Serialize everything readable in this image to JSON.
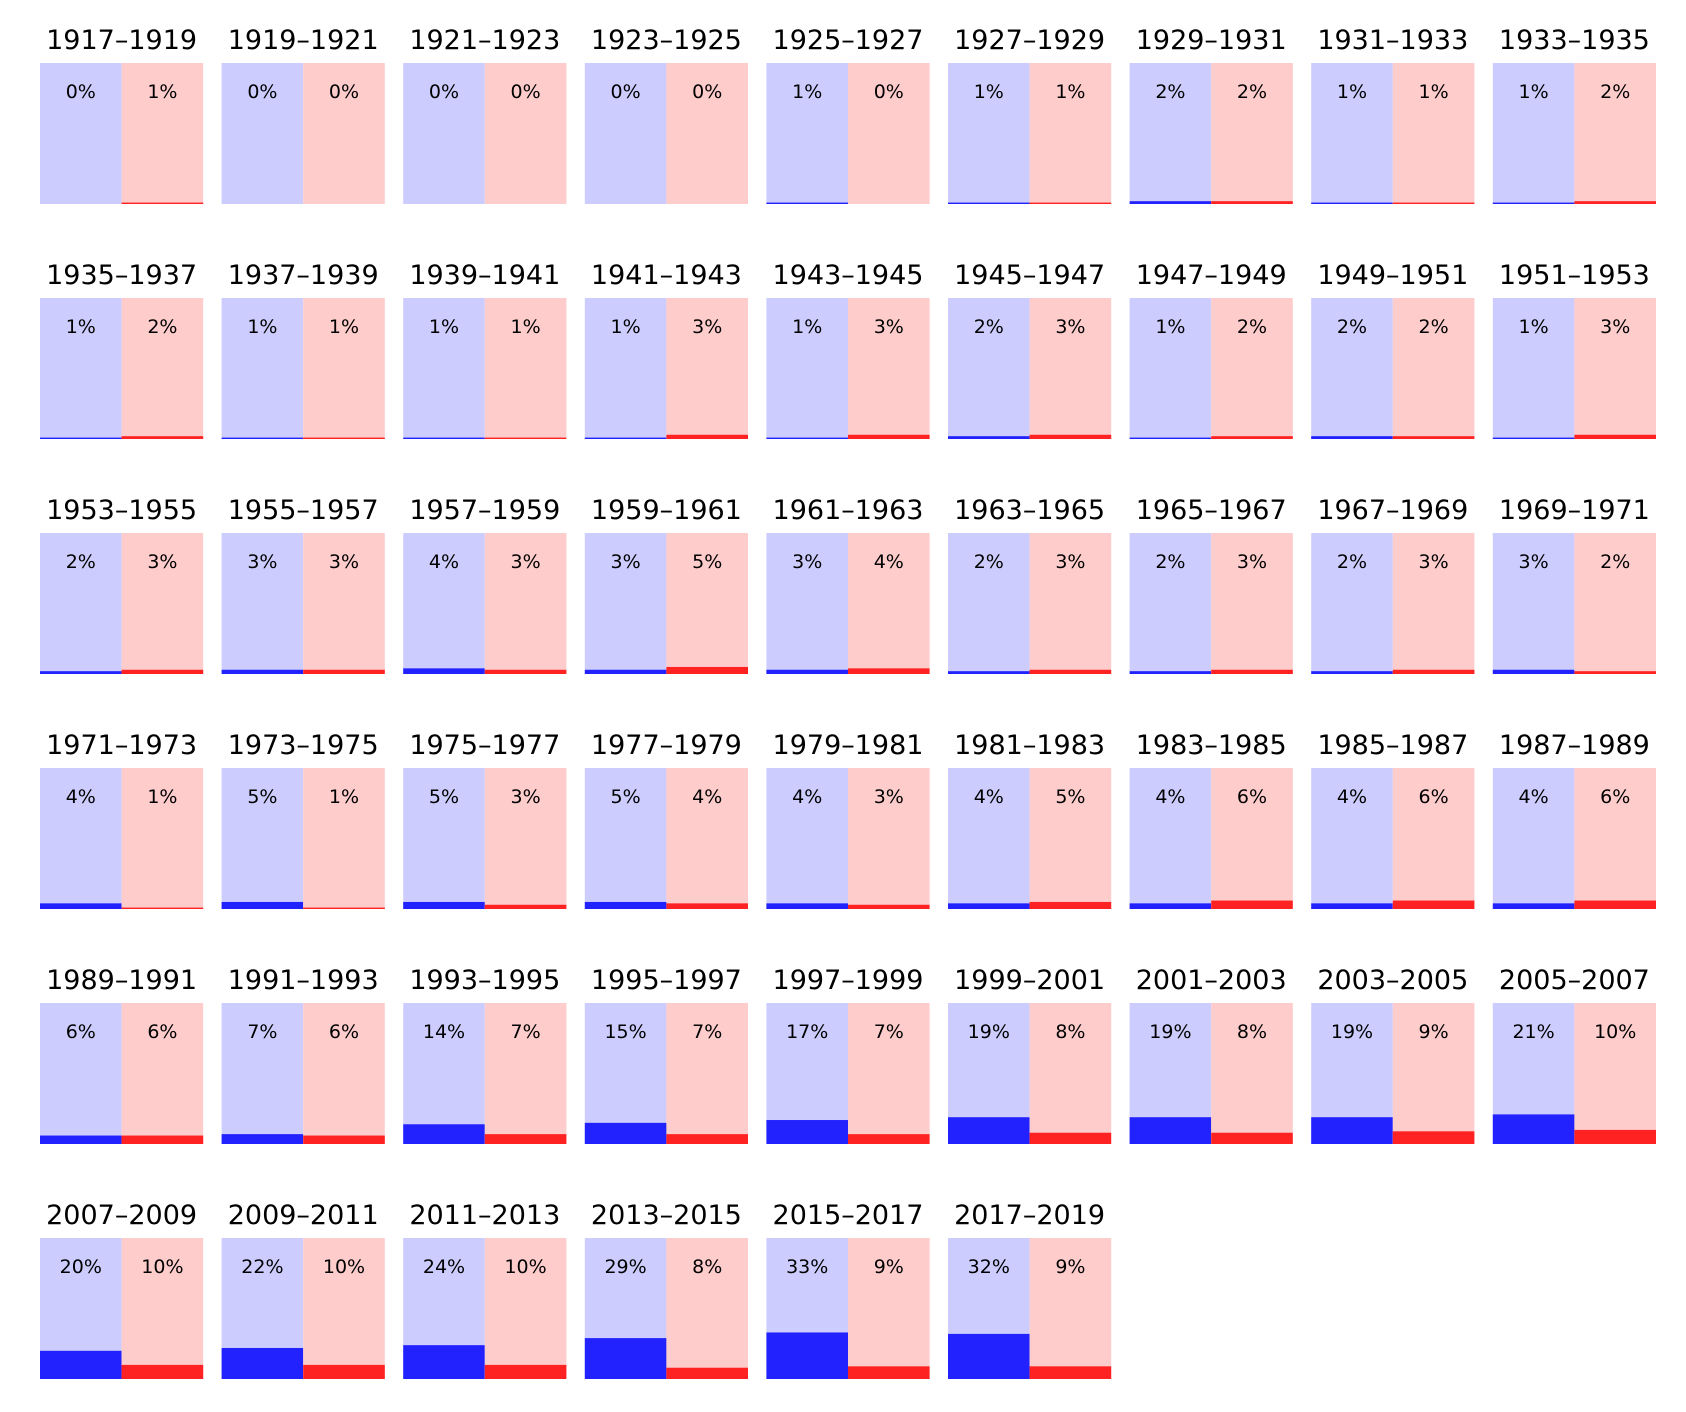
{
  "chart_data": {
    "type": "bar",
    "layout": "small-multiples",
    "colors": {
      "blue_bg": "#ccccff",
      "blue_fill": "#2222ff",
      "red_bg": "#ffcccc",
      "red_fill": "#ff2222"
    },
    "ylim": [
      0,
      100
    ],
    "panels": [
      {
        "title": "1917–1919",
        "values": [
          0,
          1
        ],
        "labels": [
          "0%",
          "1%"
        ]
      },
      {
        "title": "1919–1921",
        "values": [
          0,
          0
        ],
        "labels": [
          "0%",
          "0%"
        ]
      },
      {
        "title": "1921–1923",
        "values": [
          0,
          0
        ],
        "labels": [
          "0%",
          "0%"
        ]
      },
      {
        "title": "1923–1925",
        "values": [
          0,
          0
        ],
        "labels": [
          "0%",
          "0%"
        ]
      },
      {
        "title": "1925–1927",
        "values": [
          1,
          0
        ],
        "labels": [
          "1%",
          "0%"
        ]
      },
      {
        "title": "1927–1929",
        "values": [
          1,
          1
        ],
        "labels": [
          "1%",
          "1%"
        ]
      },
      {
        "title": "1929–1931",
        "values": [
          2,
          2
        ],
        "labels": [
          "2%",
          "2%"
        ]
      },
      {
        "title": "1931–1933",
        "values": [
          1,
          1
        ],
        "labels": [
          "1%",
          "1%"
        ]
      },
      {
        "title": "1933–1935",
        "values": [
          1,
          2
        ],
        "labels": [
          "1%",
          "2%"
        ]
      },
      {
        "title": "1935–1937",
        "values": [
          1,
          2
        ],
        "labels": [
          "1%",
          "2%"
        ]
      },
      {
        "title": "1937–1939",
        "values": [
          1,
          1
        ],
        "labels": [
          "1%",
          "1%"
        ]
      },
      {
        "title": "1939–1941",
        "values": [
          1,
          1
        ],
        "labels": [
          "1%",
          "1%"
        ]
      },
      {
        "title": "1941–1943",
        "values": [
          1,
          3
        ],
        "labels": [
          "1%",
          "3%"
        ]
      },
      {
        "title": "1943–1945",
        "values": [
          1,
          3
        ],
        "labels": [
          "1%",
          "3%"
        ]
      },
      {
        "title": "1945–1947",
        "values": [
          2,
          3
        ],
        "labels": [
          "2%",
          "3%"
        ]
      },
      {
        "title": "1947–1949",
        "values": [
          1,
          2
        ],
        "labels": [
          "1%",
          "2%"
        ]
      },
      {
        "title": "1949–1951",
        "values": [
          2,
          2
        ],
        "labels": [
          "2%",
          "2%"
        ]
      },
      {
        "title": "1951–1953",
        "values": [
          1,
          3
        ],
        "labels": [
          "1%",
          "3%"
        ]
      },
      {
        "title": "1953–1955",
        "values": [
          2,
          3
        ],
        "labels": [
          "2%",
          "3%"
        ]
      },
      {
        "title": "1955–1957",
        "values": [
          3,
          3
        ],
        "labels": [
          "3%",
          "3%"
        ]
      },
      {
        "title": "1957–1959",
        "values": [
          4,
          3
        ],
        "labels": [
          "4%",
          "3%"
        ]
      },
      {
        "title": "1959–1961",
        "values": [
          3,
          5
        ],
        "labels": [
          "3%",
          "5%"
        ]
      },
      {
        "title": "1961–1963",
        "values": [
          3,
          4
        ],
        "labels": [
          "3%",
          "4%"
        ]
      },
      {
        "title": "1963–1965",
        "values": [
          2,
          3
        ],
        "labels": [
          "2%",
          "3%"
        ]
      },
      {
        "title": "1965–1967",
        "values": [
          2,
          3
        ],
        "labels": [
          "2%",
          "3%"
        ]
      },
      {
        "title": "1967–1969",
        "values": [
          2,
          3
        ],
        "labels": [
          "2%",
          "3%"
        ]
      },
      {
        "title": "1969–1971",
        "values": [
          3,
          2
        ],
        "labels": [
          "3%",
          "2%"
        ]
      },
      {
        "title": "1971–1973",
        "values": [
          4,
          1
        ],
        "labels": [
          "4%",
          "1%"
        ]
      },
      {
        "title": "1973–1975",
        "values": [
          5,
          1
        ],
        "labels": [
          "5%",
          "1%"
        ]
      },
      {
        "title": "1975–1977",
        "values": [
          5,
          3
        ],
        "labels": [
          "5%",
          "3%"
        ]
      },
      {
        "title": "1977–1979",
        "values": [
          5,
          4
        ],
        "labels": [
          "5%",
          "4%"
        ]
      },
      {
        "title": "1979–1981",
        "values": [
          4,
          3
        ],
        "labels": [
          "4%",
          "3%"
        ]
      },
      {
        "title": "1981–1983",
        "values": [
          4,
          5
        ],
        "labels": [
          "4%",
          "5%"
        ]
      },
      {
        "title": "1983–1985",
        "values": [
          4,
          6
        ],
        "labels": [
          "4%",
          "6%"
        ]
      },
      {
        "title": "1985–1987",
        "values": [
          4,
          6
        ],
        "labels": [
          "4%",
          "6%"
        ]
      },
      {
        "title": "1987–1989",
        "values": [
          4,
          6
        ],
        "labels": [
          "4%",
          "6%"
        ]
      },
      {
        "title": "1989–1991",
        "values": [
          6,
          6
        ],
        "labels": [
          "6%",
          "6%"
        ]
      },
      {
        "title": "1991–1993",
        "values": [
          7,
          6
        ],
        "labels": [
          "7%",
          "6%"
        ]
      },
      {
        "title": "1993–1995",
        "values": [
          14,
          7
        ],
        "labels": [
          "14%",
          "7%"
        ]
      },
      {
        "title": "1995–1997",
        "values": [
          15,
          7
        ],
        "labels": [
          "15%",
          "7%"
        ]
      },
      {
        "title": "1997–1999",
        "values": [
          17,
          7
        ],
        "labels": [
          "17%",
          "7%"
        ]
      },
      {
        "title": "1999–2001",
        "values": [
          19,
          8
        ],
        "labels": [
          "19%",
          "8%"
        ]
      },
      {
        "title": "2001–2003",
        "values": [
          19,
          8
        ],
        "labels": [
          "19%",
          "8%"
        ]
      },
      {
        "title": "2003–2005",
        "values": [
          19,
          9
        ],
        "labels": [
          "19%",
          "9%"
        ]
      },
      {
        "title": "2005–2007",
        "values": [
          21,
          10
        ],
        "labels": [
          "21%",
          "10%"
        ]
      },
      {
        "title": "2007–2009",
        "values": [
          20,
          10
        ],
        "labels": [
          "20%",
          "10%"
        ]
      },
      {
        "title": "2009–2011",
        "values": [
          22,
          10
        ],
        "labels": [
          "22%",
          "10%"
        ]
      },
      {
        "title": "2011–2013",
        "values": [
          24,
          10
        ],
        "labels": [
          "24%",
          "10%"
        ]
      },
      {
        "title": "2013–2015",
        "values": [
          29,
          8
        ],
        "labels": [
          "29%",
          "8%"
        ]
      },
      {
        "title": "2015–2017",
        "values": [
          33,
          9
        ],
        "labels": [
          "33%",
          "9%"
        ]
      },
      {
        "title": "2017–2019",
        "values": [
          32,
          9
        ],
        "labels": [
          "32%",
          "9%"
        ]
      }
    ]
  }
}
